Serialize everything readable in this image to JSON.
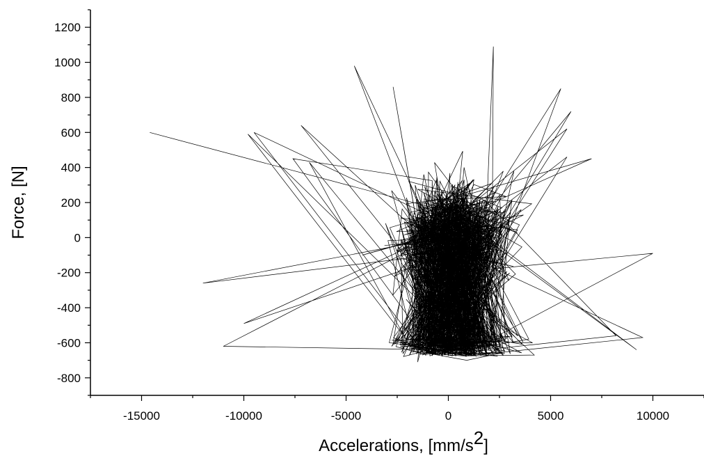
{
  "chart_data": {
    "type": "line",
    "xlabel": "Accelerations, [mm/s",
    "xlabel_sup": "2",
    "xlabel_end": "]",
    "ylabel": "Force, [N]",
    "xlim": [
      -17500,
      12500
    ],
    "ylim": [
      -900,
      1300
    ],
    "x_ticks": [
      -15000,
      -10000,
      -5000,
      0,
      5000,
      10000
    ],
    "y_ticks": [
      -800,
      -600,
      -400,
      -200,
      0,
      200,
      400,
      600,
      800,
      1000,
      1200
    ],
    "grid": false,
    "legend": "none",
    "series": [
      {
        "color": "#000000",
        "seed": 7,
        "n_points": 3000,
        "x": [
          -14600,
          -7200,
          5800,
          -9500,
          -4200,
          6000,
          -12000,
          9200,
          10000,
          -10000,
          8200,
          -11000,
          -7600,
          2200,
          9500,
          -2700,
          900,
          5500,
          -4600,
          -6800,
          7000,
          -9800,
          4200,
          -1500,
          5800,
          -800
        ],
        "y": [
          600,
          640,
          620,
          600,
          -100,
          720,
          -260,
          -640,
          -90,
          -490,
          -560,
          -620,
          450,
          1090,
          -570,
          860,
          -700,
          850,
          980,
          430,
          450,
          590,
          -670,
          -710,
          460,
          -650
        ]
      }
    ]
  }
}
